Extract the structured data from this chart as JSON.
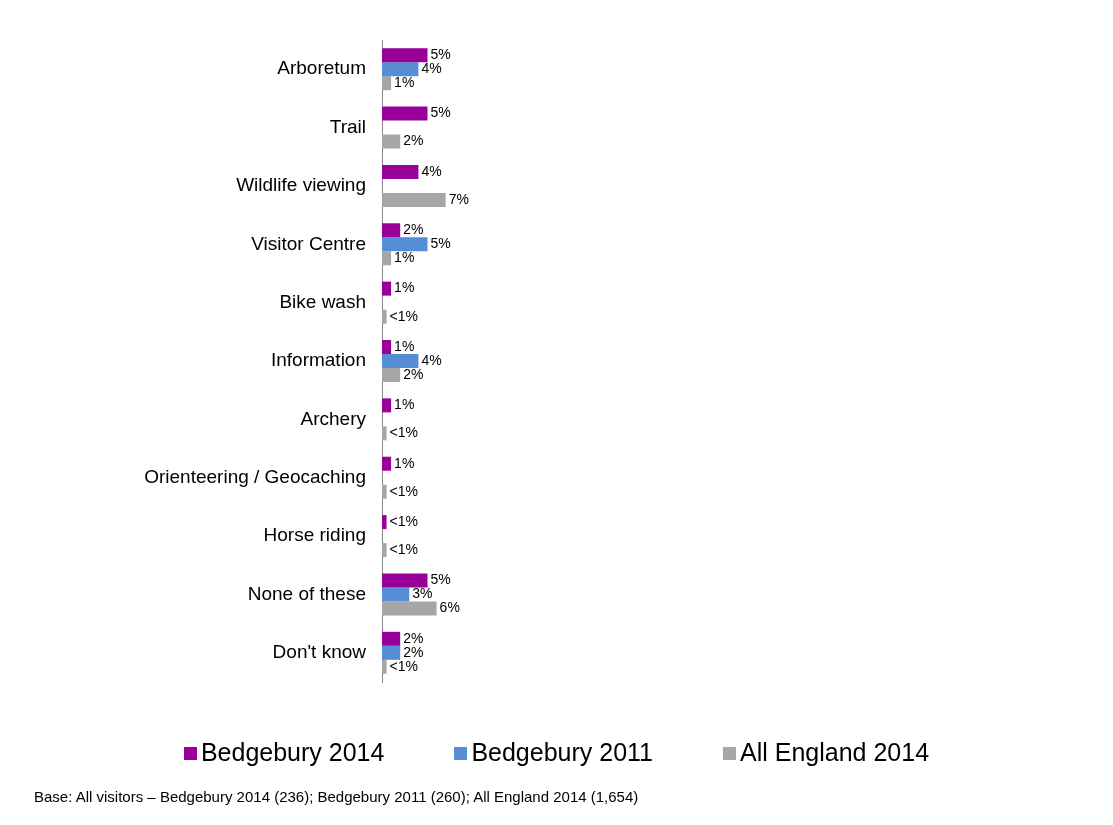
{
  "chart_data": {
    "type": "bar",
    "orientation": "horizontal",
    "categories": [
      "Arboretum",
      "Trail",
      "Wildlife viewing",
      "Visitor Centre",
      "Bike wash",
      "Information",
      "Archery",
      "Orienteering / Geocaching",
      "Horse riding",
      "None of these",
      "Don't know"
    ],
    "series": [
      {
        "name": "Bedgebury 2014",
        "color": "#990099",
        "values": [
          5,
          5,
          4,
          2,
          1,
          1,
          1,
          1,
          0.5,
          5,
          2
        ],
        "value_labels": [
          "5%",
          "5%",
          "4%",
          "2%",
          "1%",
          "1%",
          "1%",
          "1%",
          "<1%",
          "5%",
          "2%"
        ]
      },
      {
        "name": "Bedgebury 2011",
        "color": "#558ed5",
        "values": [
          4,
          null,
          null,
          5,
          null,
          4,
          null,
          null,
          null,
          3,
          2
        ],
        "value_labels": [
          "4%",
          null,
          null,
          "5%",
          null,
          "4%",
          null,
          null,
          null,
          "3%",
          "2%"
        ]
      },
      {
        "name": "All England 2014",
        "color": "#a6a6a6",
        "values": [
          1,
          2,
          7,
          1,
          0.5,
          2,
          0.5,
          0.5,
          0.5,
          6,
          0.5
        ],
        "value_labels": [
          "1%",
          "2%",
          "7%",
          "1%",
          "<1%",
          "2%",
          "<1%",
          "<1%",
          "<1%",
          "6%",
          "<1%"
        ]
      }
    ],
    "tick_labels": "y",
    "grid": false,
    "legend": "bottom",
    "annotations": [
      "Base: All visitors – Bedgebury 2014 (236); Bedgebury 2011 (260); All England 2014 (1,654)"
    ]
  }
}
